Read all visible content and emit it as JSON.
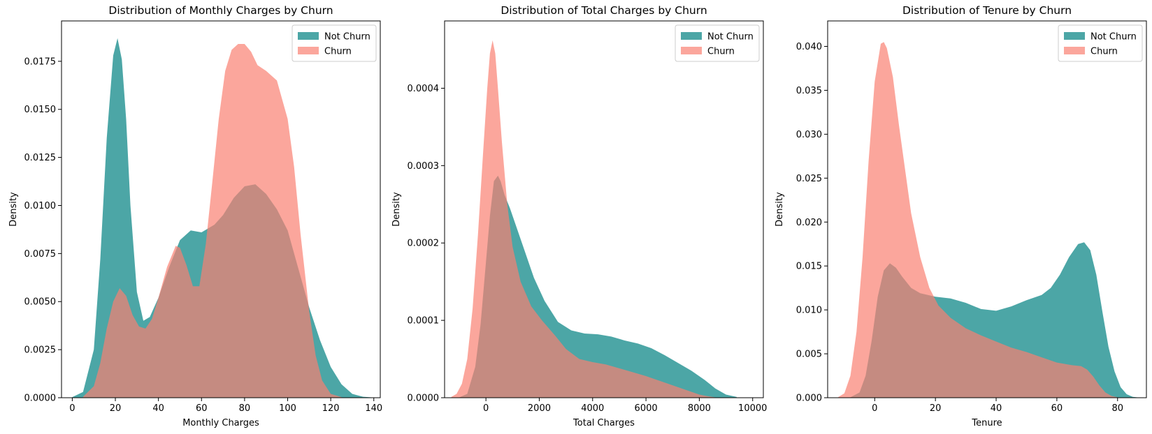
{
  "colors": {
    "not_churn": "#008080",
    "churn": "#FA8072",
    "axis": "#000000",
    "background": "#ffffff"
  },
  "chart_data": [
    {
      "type": "area",
      "title": "Distribution of Monthly Charges by Churn",
      "xlabel": "Monthly Charges",
      "ylabel": "Density",
      "xlim": [
        -5,
        143
      ],
      "ylim": [
        0,
        0.0196
      ],
      "xticks": [
        0,
        20,
        40,
        60,
        80,
        100,
        120,
        140
      ],
      "xtick_labels": [
        "0",
        "20",
        "40",
        "60",
        "80",
        "100",
        "120",
        "140"
      ],
      "yticks": [
        0,
        0.0025,
        0.005,
        0.0075,
        0.01,
        0.0125,
        0.015,
        0.0175
      ],
      "ytick_labels": [
        "0.0000",
        "0.0025",
        "0.0050",
        "0.0075",
        "0.0100",
        "0.0125",
        "0.0150",
        "0.0175"
      ],
      "legend": {
        "location": "top-right",
        "entries": [
          "Not Churn",
          "Churn"
        ]
      },
      "series": [
        {
          "name": "Not Churn",
          "x": [
            0,
            5,
            10,
            13,
            16,
            19,
            21,
            23,
            25,
            27,
            30,
            33,
            36,
            40,
            45,
            50,
            55,
            60,
            63,
            66,
            70,
            75,
            80,
            85,
            90,
            95,
            100,
            105,
            110,
            115,
            120,
            125,
            130,
            135,
            140
          ],
          "y": [
            3e-05,
            0.0003,
            0.0025,
            0.0072,
            0.0135,
            0.0178,
            0.0187,
            0.0176,
            0.0145,
            0.01,
            0.0055,
            0.004,
            0.0042,
            0.0052,
            0.0068,
            0.0082,
            0.0087,
            0.0086,
            0.0088,
            0.009,
            0.0095,
            0.0104,
            0.011,
            0.0111,
            0.0106,
            0.0098,
            0.0087,
            0.0067,
            0.0047,
            0.003,
            0.0016,
            0.0007,
            0.0002,
            5e-05,
            1e-05
          ]
        },
        {
          "name": "Churn",
          "x": [
            5,
            10,
            13,
            16,
            19,
            22,
            25,
            28,
            31,
            34,
            37,
            40,
            44,
            48,
            50,
            53,
            56,
            59,
            62,
            65,
            68,
            71,
            74,
            77,
            80,
            83,
            86,
            90,
            95,
            100,
            103,
            106,
            110,
            113,
            116,
            120,
            125
          ],
          "y": [
            5e-05,
            0.0006,
            0.0018,
            0.0036,
            0.005,
            0.0057,
            0.0053,
            0.0043,
            0.0037,
            0.0036,
            0.0041,
            0.0052,
            0.0068,
            0.0079,
            0.0078,
            0.0069,
            0.0058,
            0.0058,
            0.008,
            0.0112,
            0.0145,
            0.017,
            0.0181,
            0.0184,
            0.0184,
            0.018,
            0.0173,
            0.017,
            0.0165,
            0.0145,
            0.012,
            0.0085,
            0.0045,
            0.0022,
            0.0009,
            0.0002,
            3e-05
          ]
        }
      ]
    },
    {
      "type": "area",
      "title": "Distribution of Total Charges by Churn",
      "xlabel": "Total Charges",
      "ylabel": "Density",
      "xlim": [
        -1550,
        10400
      ],
      "ylim": [
        0,
        0.000487
      ],
      "xticks": [
        0,
        2000,
        4000,
        6000,
        8000,
        10000
      ],
      "xtick_labels": [
        "0",
        "2000",
        "4000",
        "6000",
        "8000",
        "10000"
      ],
      "yticks": [
        0,
        0.0001,
        0.0002,
        0.0003,
        0.0004
      ],
      "ytick_labels": [
        "0.0000",
        "0.0001",
        "0.0002",
        "0.0003",
        "0.0004"
      ],
      "legend": {
        "location": "top-right",
        "entries": [
          "Not Churn",
          "Churn"
        ]
      },
      "series": [
        {
          "name": "Not Churn",
          "x": [
            -1000,
            -700,
            -400,
            -200,
            0,
            150,
            300,
            450,
            550,
            700,
            900,
            1100,
            1400,
            1800,
            2200,
            2700,
            3200,
            3700,
            4200,
            4700,
            5200,
            5700,
            6200,
            6700,
            7200,
            7700,
            8200,
            8600,
            9000,
            9400
          ],
          "y": [
            5e-07,
            5e-06,
            4e-05,
            9.5e-05,
            0.000175,
            0.000235,
            0.00028,
            0.000287,
            0.00028,
            0.000262,
            0.000245,
            0.000225,
            0.000195,
            0.000155,
            0.000125,
            9.8e-05,
            8.7e-05,
            8.3e-05,
            8.2e-05,
            7.9e-05,
            7.4e-05,
            7e-05,
            6.4e-05,
            5.5e-05,
            4.5e-05,
            3.5e-05,
            2.3e-05,
            1.2e-05,
            4e-06,
            1e-06
          ]
        },
        {
          "name": "Churn",
          "x": [
            -1300,
            -1100,
            -900,
            -700,
            -500,
            -300,
            -100,
            50,
            150,
            250,
            350,
            450,
            600,
            800,
            1000,
            1300,
            1700,
            2100,
            2600,
            3000,
            3500,
            4000,
            4500,
            5000,
            5500,
            6000,
            6500,
            7000,
            7500,
            8000,
            8300,
            8600
          ],
          "y": [
            1e-06,
            5e-06,
            1.8e-05,
            5e-05,
            0.000115,
            0.00021,
            0.00032,
            0.0004,
            0.000445,
            0.000462,
            0.000445,
            0.0004,
            0.00033,
            0.00025,
            0.000195,
            0.00015,
            0.000118,
            0.0001,
            8e-05,
            6.3e-05,
            5e-05,
            4.6e-05,
            4.3e-05,
            3.8e-05,
            3.3e-05,
            2.8e-05,
            2.2e-05,
            1.6e-05,
            1e-05,
            4e-06,
            2e-06,
            5e-07
          ]
        }
      ]
    },
    {
      "type": "area",
      "title": "Distribution of Tenure by Churn",
      "xlabel": "Tenure",
      "ylabel": "Density",
      "xlim": [
        -15.5,
        89.5
      ],
      "ylim": [
        0,
        0.0429
      ],
      "xticks": [
        0,
        20,
        40,
        60,
        80
      ],
      "xtick_labels": [
        "0",
        "20",
        "40",
        "60",
        "80"
      ],
      "yticks": [
        0,
        0.005,
        0.01,
        0.015,
        0.02,
        0.025,
        0.03,
        0.035,
        0.04
      ],
      "ytick_labels": [
        "0.000",
        "0.005",
        "0.010",
        "0.015",
        "0.020",
        "0.025",
        "0.030",
        "0.035",
        "0.040"
      ],
      "legend": {
        "location": "top-right",
        "entries": [
          "Not Churn",
          "Churn"
        ]
      },
      "series": [
        {
          "name": "Not Churn",
          "x": [
            -8,
            -5,
            -3,
            -1,
            1,
            3,
            5,
            7,
            9,
            12,
            15,
            20,
            25,
            30,
            35,
            40,
            45,
            50,
            55,
            58,
            61,
            64,
            67,
            69,
            71,
            73,
            75,
            77,
            79,
            81,
            83,
            85,
            87
          ],
          "y": [
            5e-05,
            0.0006,
            0.0025,
            0.0065,
            0.0115,
            0.0145,
            0.0153,
            0.0148,
            0.0138,
            0.0125,
            0.0119,
            0.0115,
            0.0113,
            0.0108,
            0.0101,
            0.0099,
            0.0104,
            0.0111,
            0.0117,
            0.0125,
            0.014,
            0.016,
            0.0175,
            0.0177,
            0.0168,
            0.014,
            0.0098,
            0.0058,
            0.003,
            0.0012,
            0.0004,
            0.0001,
            2e-05
          ]
        },
        {
          "name": "Churn",
          "x": [
            -12,
            -10,
            -8,
            -6,
            -4,
            -2,
            0,
            2,
            3,
            4,
            6,
            8,
            10,
            12,
            15,
            18,
            21,
            25,
            30,
            35,
            40,
            45,
            50,
            55,
            60,
            65,
            68,
            70,
            72,
            74,
            76,
            78,
            80
          ],
          "y": [
            8e-05,
            0.0005,
            0.0025,
            0.0075,
            0.016,
            0.027,
            0.036,
            0.0403,
            0.0405,
            0.0398,
            0.0365,
            0.031,
            0.026,
            0.021,
            0.016,
            0.0125,
            0.0105,
            0.0091,
            0.0079,
            0.0071,
            0.0064,
            0.0057,
            0.0052,
            0.0046,
            0.004,
            0.0037,
            0.0036,
            0.0032,
            0.0024,
            0.0014,
            0.0006,
            0.0002,
            5e-05
          ]
        }
      ]
    }
  ]
}
